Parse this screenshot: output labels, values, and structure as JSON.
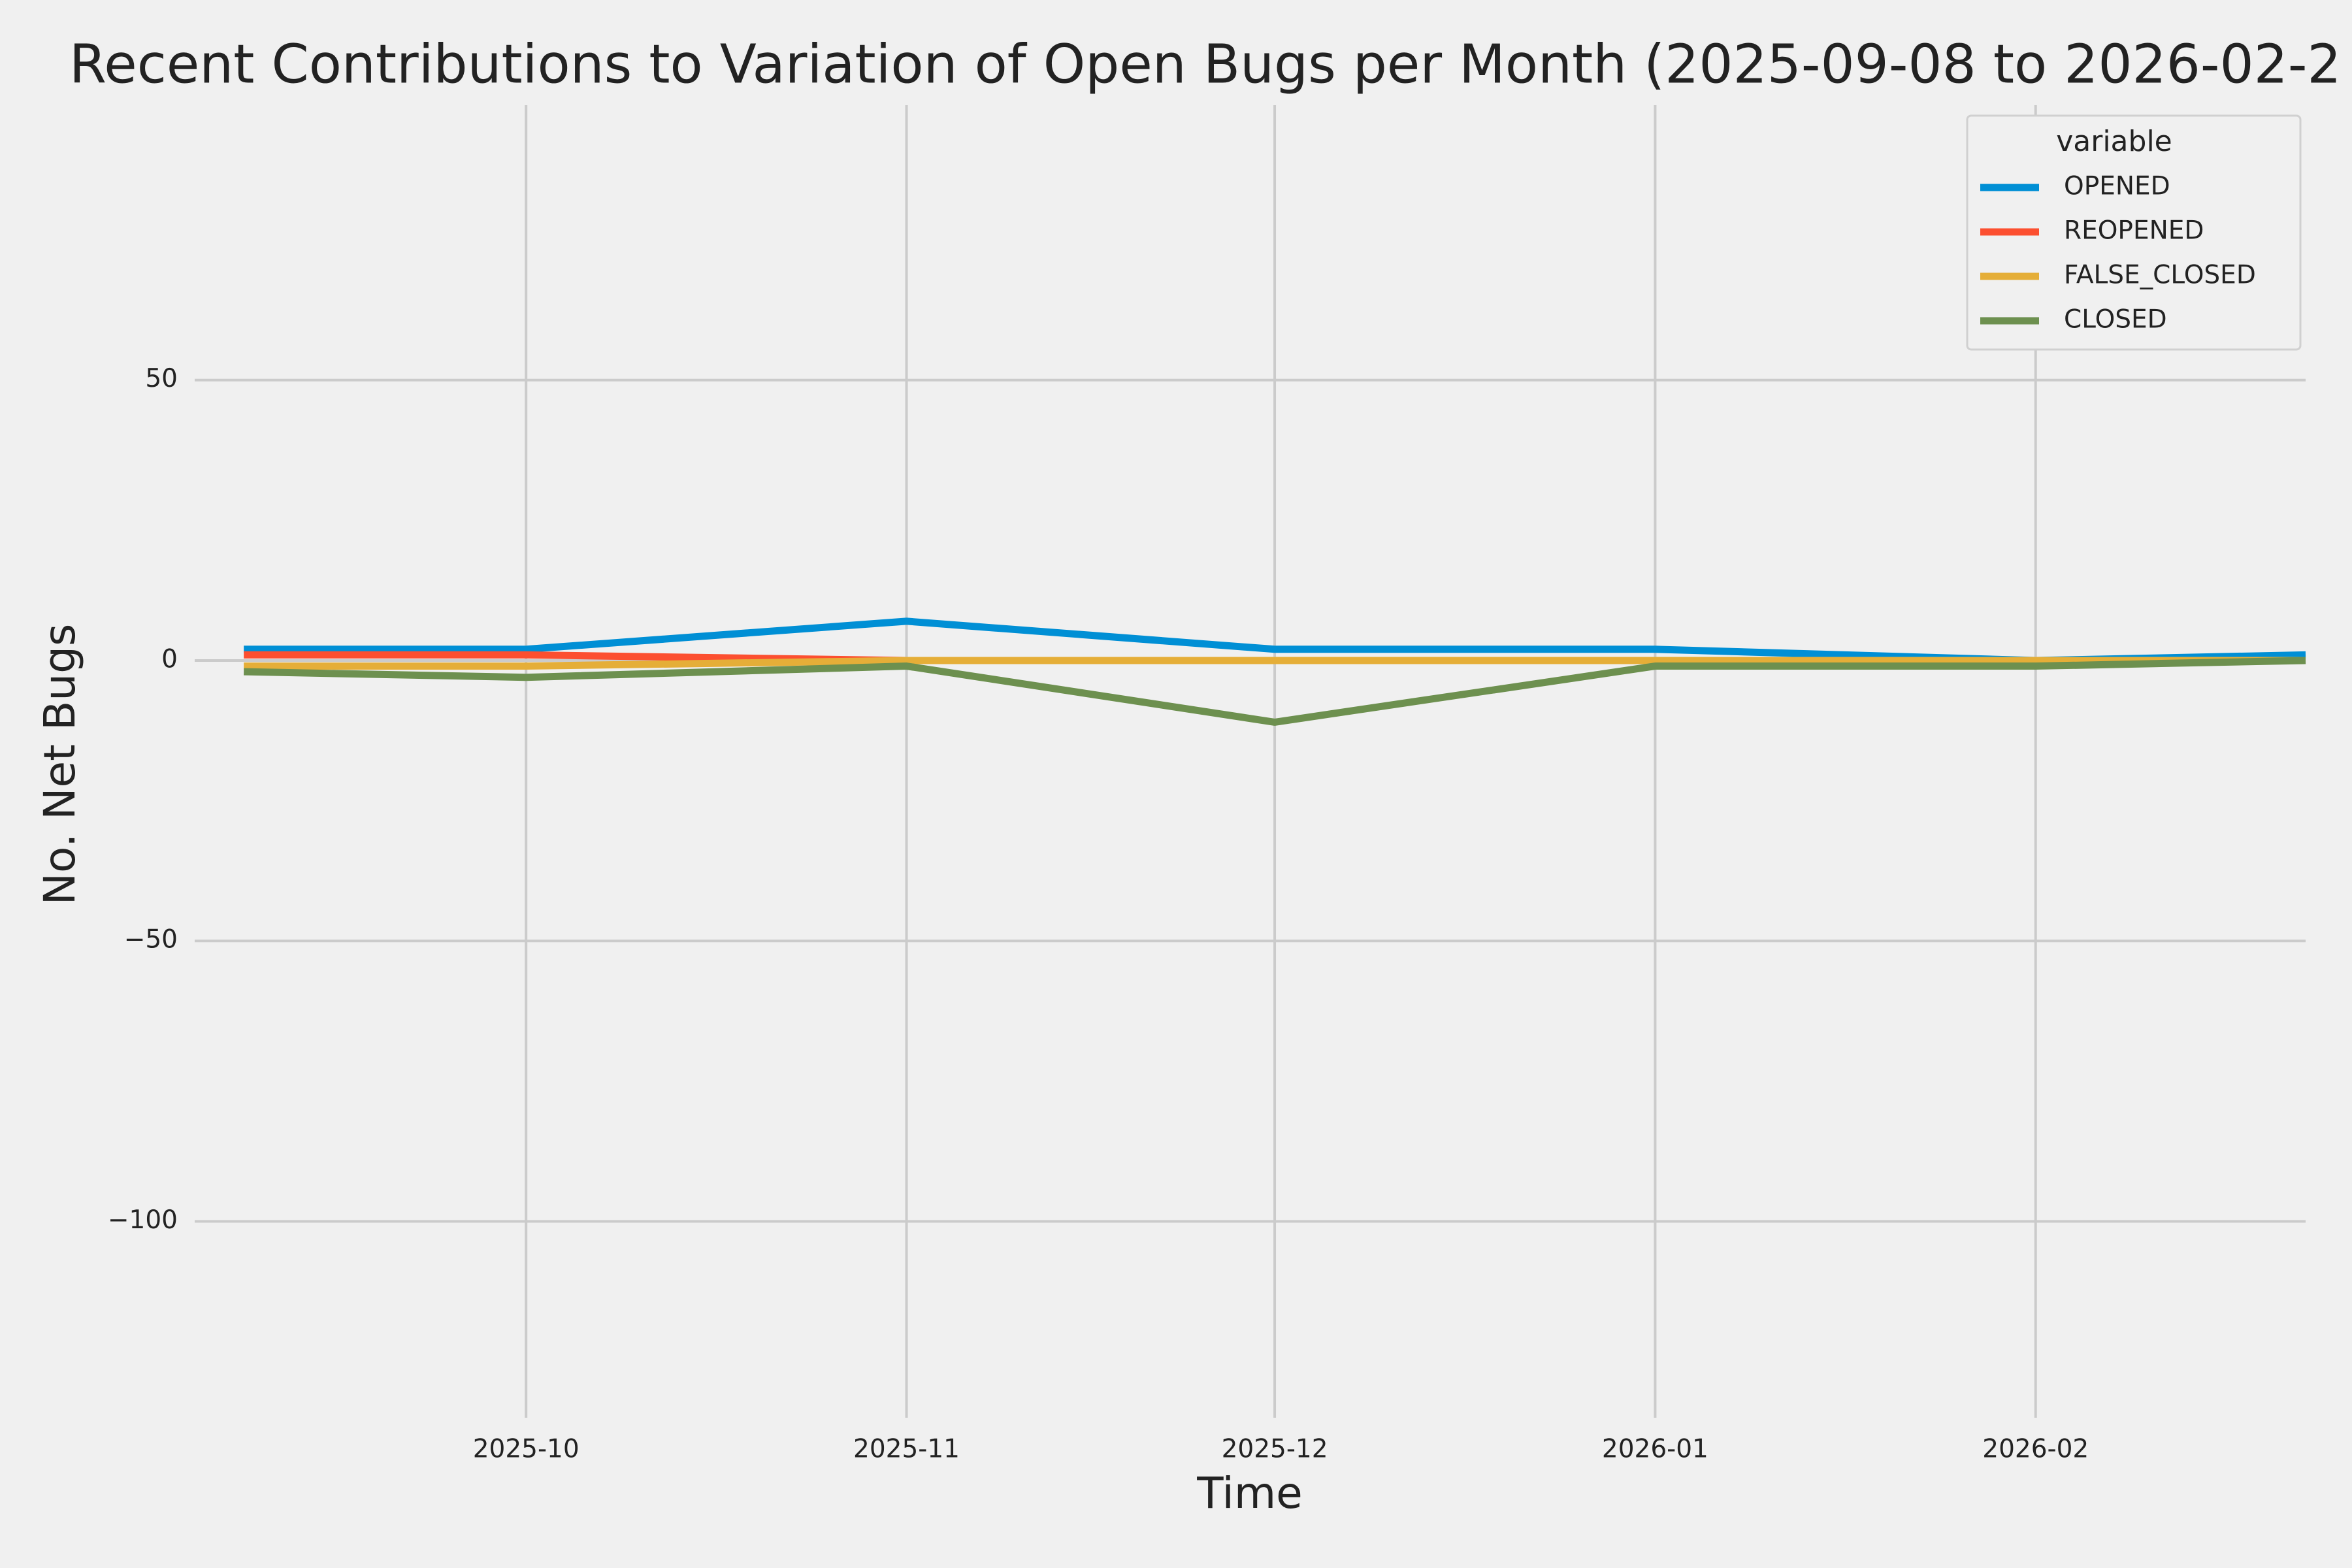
{
  "chart_data": {
    "type": "line",
    "title": "Recent Contributions to Variation of Open Bugs per Month (2025-09-08 to 2026-02-2",
    "xlabel": "Time",
    "ylabel": "No. Net Bugs",
    "x": [
      "2025-09-08",
      "2025-10-01",
      "2025-11-01",
      "2025-12-01",
      "2026-01-01",
      "2026-02-01",
      "2026-02-23"
    ],
    "series": [
      {
        "name": "OPENED",
        "color": "#008fd5",
        "values": [
          2,
          2,
          7,
          2,
          2,
          0,
          1
        ]
      },
      {
        "name": "REOPENED",
        "color": "#fc4f30",
        "values": [
          1,
          1,
          0,
          0,
          0,
          0,
          0
        ]
      },
      {
        "name": "FALSE_CLOSED",
        "color": "#e5ae38",
        "values": [
          -1,
          -1,
          0,
          0,
          0,
          0,
          0
        ]
      },
      {
        "name": "CLOSED",
        "color": "#6d904f",
        "values": [
          -2,
          -3,
          -1,
          -11,
          -1,
          -1,
          0
        ]
      }
    ],
    "xlim": [
      "2025-09-04",
      "2026-02-23"
    ],
    "xticks": [
      {
        "value": "2025-10-01",
        "label": "2025-10"
      },
      {
        "value": "2025-11-01",
        "label": "2025-11"
      },
      {
        "value": "2025-12-01",
        "label": "2025-12"
      },
      {
        "value": "2026-01-01",
        "label": "2026-01"
      },
      {
        "value": "2026-02-01",
        "label": "2026-02"
      }
    ],
    "ylim": [
      -135,
      99
    ],
    "yticks": [
      {
        "value": -100,
        "label": "−100"
      },
      {
        "value": -50,
        "label": "−50"
      },
      0,
      50
    ],
    "grid": true,
    "legend_title": "variable",
    "legend": "upper right"
  }
}
